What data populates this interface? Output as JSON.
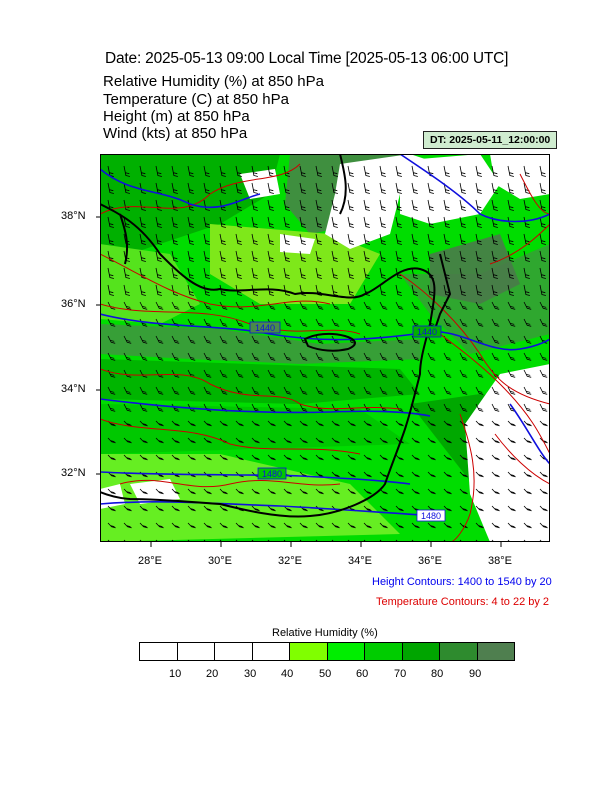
{
  "title": "Date: 2025-05-13  09:00 Local Time [2025-05-13  06:00 UTC]",
  "variables": [
    {
      "name": "Relative Humidity",
      "unit": "(%)",
      "level": "at  850 hPa"
    },
    {
      "name": "Temperature",
      "unit": "(C)",
      "level": "at  850 hPa"
    },
    {
      "name": "Height",
      "unit": "(m)",
      "level": "at  850 hPa"
    },
    {
      "name": "Wind",
      "unit": "(kts)",
      "level": "at  850 hPa"
    }
  ],
  "variable_lines": [
    "Relative Humidity   (%)     at   850 hPa",
    "Temperature   (C)     at   850 hPa",
    "Height   (m)     at   850 hPa",
    "Wind   (kts)     at   850 hPa"
  ],
  "dt_label": "DT: 2025-05-11_12:00:00",
  "map": {
    "lat_labels": [
      "38°N",
      "36°N",
      "34°N",
      "32°N"
    ],
    "lon_labels": [
      "28°E",
      "30°E",
      "32°E",
      "34°E",
      "36°E",
      "38°E"
    ],
    "height_contour_labels": [
      "1440",
      "1440",
      "1480",
      "1480"
    ],
    "colors": {
      "height_contour": "#1010dd",
      "temperature_contour": "#cc0000",
      "coastline": "#000000"
    }
  },
  "height_contours_note": "Height Contours: 1400 to 1540 by 20",
  "temperature_contours_note": "Temperature Contours: 4 to 22 by 2",
  "colorbar": {
    "title": "Relative Humidity  (%)",
    "labels": [
      "10",
      "20",
      "30",
      "40",
      "50",
      "60",
      "70",
      "80",
      "90"
    ],
    "colors": [
      "#ffffff",
      "#ffffff",
      "#ffffff",
      "#ffffff",
      "#80ff00",
      "#00ee00",
      "#00cc00",
      "#00a500",
      "#2e8b2e",
      "#4f7f4f"
    ]
  }
}
